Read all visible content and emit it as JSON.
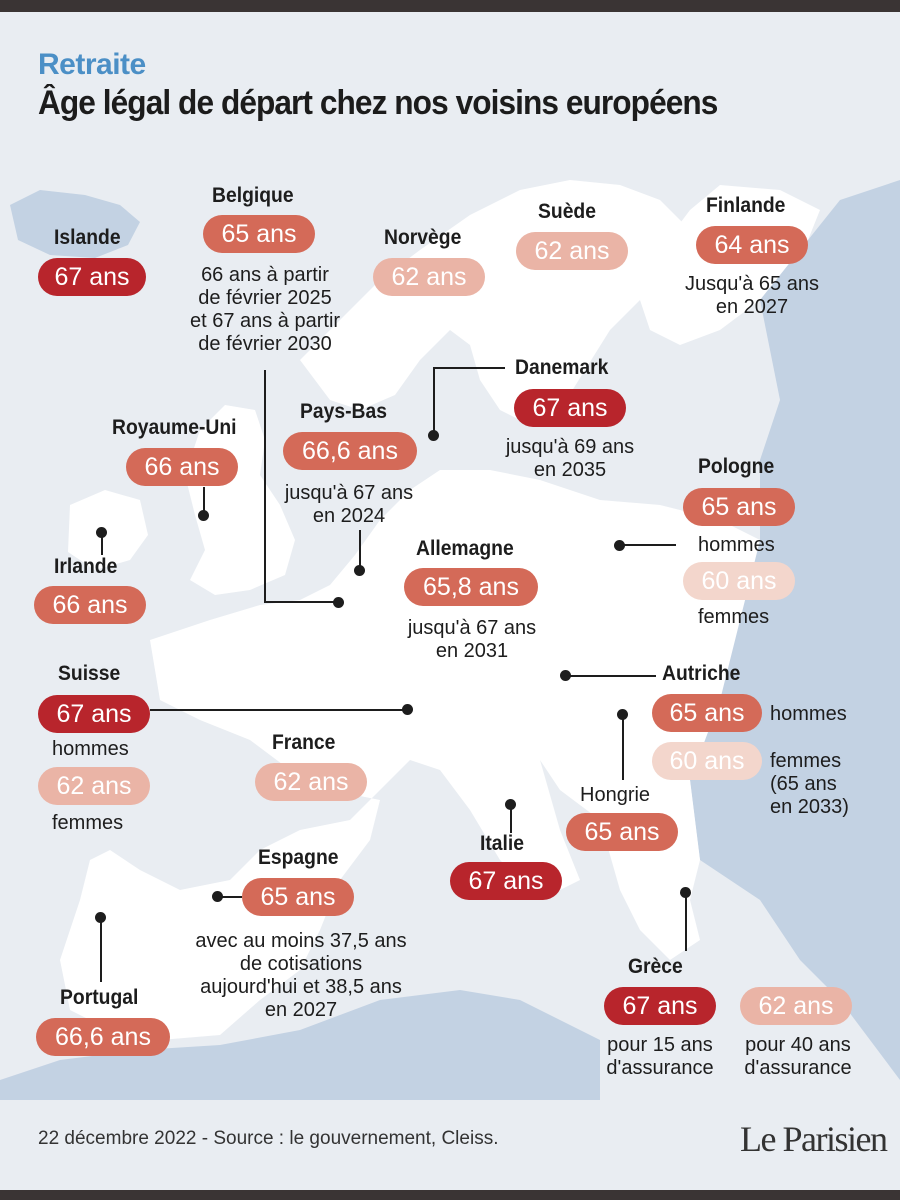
{
  "colors": {
    "dark": "#b8252c",
    "mid": "#d46a58",
    "light": "#eab4a6",
    "pale": "#f3d6cc",
    "kicker": "#4b8fc6",
    "water": "#e9edf2",
    "land": "#ffffff",
    "outer_land": "#c3d2e3"
  },
  "header": {
    "kicker": "Retraite",
    "title": "Âge légal de départ chez nos voisins européens"
  },
  "countries": {
    "islande": {
      "name": "Islande",
      "age": "67 ans"
    },
    "belgique": {
      "name": "Belgique",
      "age": "65 ans",
      "note": [
        "66 ans à partir",
        "de février 2025",
        "et 67 ans à partir",
        "de février 2030"
      ]
    },
    "norvege": {
      "name": "Norvège",
      "age": "62 ans"
    },
    "suede": {
      "name": "Suède",
      "age": "62 ans"
    },
    "finlande": {
      "name": "Finlande",
      "age": "64 ans",
      "note": [
        "Jusqu'à 65 ans",
        "en 2027"
      ]
    },
    "danemark": {
      "name": "Danemark",
      "age": "67 ans",
      "note": [
        "jusqu'à 69 ans",
        "en 2035"
      ]
    },
    "royaume_uni": {
      "name": "Royaume-Uni",
      "age": "66 ans"
    },
    "pays_bas": {
      "name": "Pays-Bas",
      "age": "66,6 ans",
      "note": [
        "jusqu'à 67 ans",
        "en 2024"
      ]
    },
    "pologne": {
      "name": "Pologne",
      "age_men": "65 ans",
      "men": "hommes",
      "age_women": "60 ans",
      "women": "femmes"
    },
    "irlande": {
      "name": "Irlande",
      "age": "66 ans"
    },
    "allemagne": {
      "name": "Allemagne",
      "age": "65,8 ans",
      "note": [
        "jusqu'à 67 ans",
        "en 2031"
      ]
    },
    "suisse": {
      "name": "Suisse",
      "age_men": "67 ans",
      "men": "hommes",
      "age_women": "62 ans",
      "women": "femmes"
    },
    "autriche": {
      "name": "Autriche",
      "age_men": "65 ans",
      "men": "hommes",
      "age_women": "60 ans",
      "women": [
        "femmes",
        "(65 ans",
        "en 2033)"
      ]
    },
    "france": {
      "name": "France",
      "age": "62 ans"
    },
    "hongrie": {
      "name": "Hongrie",
      "age": "65 ans"
    },
    "italie": {
      "name": "Italie",
      "age": "67 ans"
    },
    "espagne": {
      "name": "Espagne",
      "age": "65 ans",
      "note": [
        "avec au moins 37,5 ans",
        "de cotisations",
        "aujourd'hui et 38,5 ans",
        "en 2027"
      ]
    },
    "portugal": {
      "name": "Portugal",
      "age": "66,6 ans"
    },
    "grece": {
      "name": "Grèce",
      "age_a": "67 ans",
      "note_a": [
        "pour 15 ans",
        "d'assurance"
      ],
      "age_b": "62 ans",
      "note_b": [
        "pour 40 ans",
        "d'assurance"
      ]
    }
  },
  "footer": {
    "source": "22 décembre 2022 - Source : le gouvernement, Cleiss.",
    "logo": "Le Parisien"
  }
}
